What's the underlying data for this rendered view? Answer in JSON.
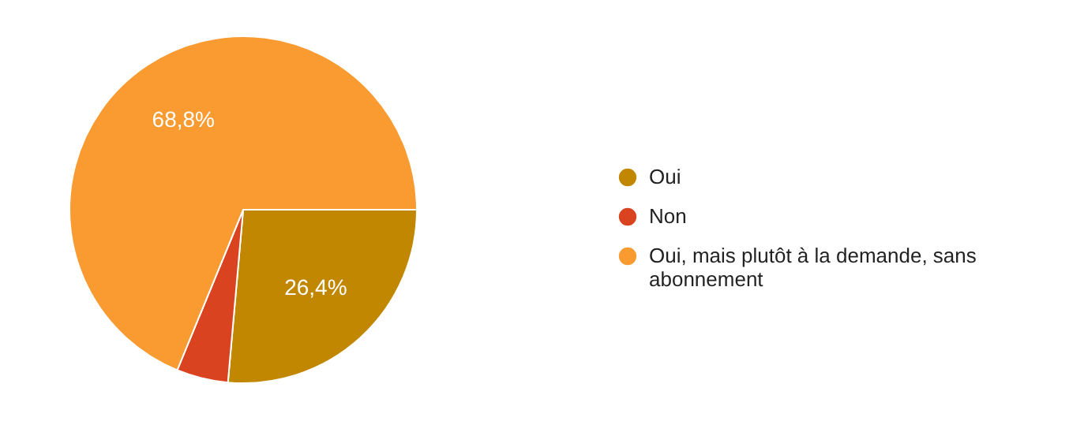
{
  "chart_data": {
    "type": "pie",
    "categories": [
      "Oui",
      "Non",
      "Oui, mais plutôt à la demande, sans abonnement"
    ],
    "values": [
      26.4,
      4.8,
      68.8
    ],
    "colors": [
      "#c18700",
      "#d9431f",
      "#f99b31"
    ],
    "value_labels": [
      "26,4%",
      null,
      "68,8%"
    ],
    "legend": "right"
  }
}
